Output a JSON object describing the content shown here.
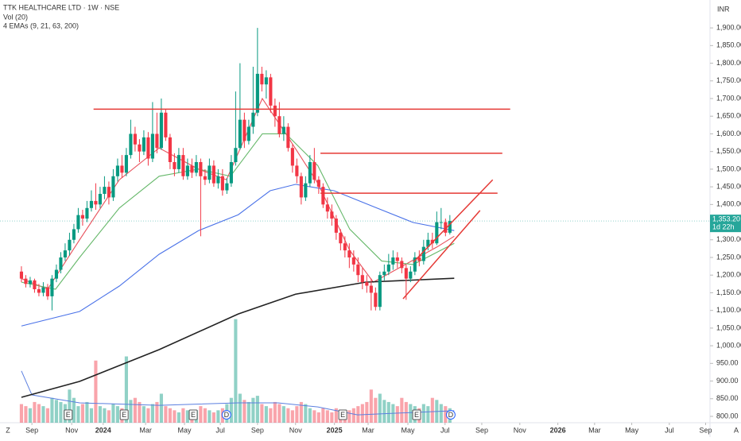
{
  "chart_data": {
    "type": "candlestick",
    "title": "TTK HEALTHCARE LTD · 1W · NSE",
    "volume_label": "Vol (20)",
    "ema_label": "4 EMAs (9, 21, 63, 200)",
    "currency": "INR",
    "corner_left": "Z",
    "corner_right": "A",
    "xlim": [
      -4.9,
      157.5
    ],
    "ylim": [
      782,
      1979
    ],
    "volume_ylim": [
      0,
      1020
    ],
    "up_color": "#089981",
    "down_color": "#f23645",
    "yticks": [
      {
        "value": 1900,
        "label": "1,900.00"
      },
      {
        "value": 1850,
        "label": "1,850.00"
      },
      {
        "value": 1800,
        "label": "1,800.00"
      },
      {
        "value": 1750,
        "label": "1,750.00"
      },
      {
        "value": 1700,
        "label": "1,700.00"
      },
      {
        "value": 1650,
        "label": "1,650.00"
      },
      {
        "value": 1600,
        "label": "1,600.00"
      },
      {
        "value": 1550,
        "label": "1,550.00"
      },
      {
        "value": 1500,
        "label": "1,500.00"
      },
      {
        "value": 1450,
        "label": "1,450.00"
      },
      {
        "value": 1400,
        "label": "1,400.00"
      },
      {
        "value": 1300,
        "label": "1,300.00"
      },
      {
        "value": 1250,
        "label": "1,250.00"
      },
      {
        "value": 1200,
        "label": "1,200.00"
      },
      {
        "value": 1150,
        "label": "1,150.00"
      },
      {
        "value": 1100,
        "label": "1,100.00"
      },
      {
        "value": 1050,
        "label": "1,050.00"
      },
      {
        "value": 1000,
        "label": "1,000.00"
      },
      {
        "value": 950,
        "label": "950.00"
      },
      {
        "value": 900,
        "label": "900.00"
      },
      {
        "value": 850,
        "label": "850.00"
      },
      {
        "value": 800,
        "label": "800.00"
      }
    ],
    "xticks": [
      {
        "value": 2.4,
        "label": "Sep"
      },
      {
        "value": 11.5,
        "label": "Nov"
      },
      {
        "value": 18.7,
        "label": "2024",
        "bold": true
      },
      {
        "value": 28.4,
        "label": "Mar"
      },
      {
        "value": 37.3,
        "label": "May"
      },
      {
        "value": 45.5,
        "label": "Jul"
      },
      {
        "value": 54,
        "label": "Sep"
      },
      {
        "value": 62.7,
        "label": "Nov"
      },
      {
        "value": 71.6,
        "label": "2025",
        "bold": true
      },
      {
        "value": 79.3,
        "label": "Mar"
      },
      {
        "value": 88.4,
        "label": "May"
      },
      {
        "value": 96.9,
        "label": "Jul"
      },
      {
        "value": 105.3,
        "label": "Sep"
      },
      {
        "value": 114,
        "label": "Nov"
      },
      {
        "value": 122.7,
        "label": "2026",
        "bold": true
      },
      {
        "value": 131.1,
        "label": "Mar"
      },
      {
        "value": 139.6,
        "label": "May"
      },
      {
        "value": 148.2,
        "label": "Jul"
      },
      {
        "value": 156.5,
        "label": "Sep"
      }
    ],
    "current_price": {
      "value": 1353.2,
      "label": "1,353.20",
      "countdown": "1d 22h",
      "color": "#26a69a"
    },
    "candles": [
      [
        1210,
        1225,
        1180,
        1190
      ],
      [
        1190,
        1200,
        1165,
        1175
      ],
      [
        1175,
        1195,
        1165,
        1185
      ],
      [
        1185,
        1190,
        1150,
        1160
      ],
      [
        1160,
        1175,
        1140,
        1150
      ],
      [
        1150,
        1180,
        1140,
        1165
      ],
      [
        1165,
        1175,
        1130,
        1140
      ],
      [
        1140,
        1200,
        1100,
        1190
      ],
      [
        1190,
        1230,
        1180,
        1215
      ],
      [
        1215,
        1265,
        1205,
        1250
      ],
      [
        1250,
        1290,
        1240,
        1270
      ],
      [
        1270,
        1320,
        1255,
        1300
      ],
      [
        1300,
        1345,
        1290,
        1330
      ],
      [
        1330,
        1390,
        1320,
        1370
      ],
      [
        1370,
        1385,
        1340,
        1360
      ],
      [
        1360,
        1410,
        1350,
        1390
      ],
      [
        1390,
        1440,
        1380,
        1410
      ],
      [
        1410,
        1460,
        1385,
        1400
      ],
      [
        1400,
        1450,
        1390,
        1430
      ],
      [
        1430,
        1480,
        1415,
        1450
      ],
      [
        1450,
        1465,
        1400,
        1420
      ],
      [
        1420,
        1500,
        1410,
        1480
      ],
      [
        1480,
        1530,
        1465,
        1510
      ],
      [
        1510,
        1540,
        1475,
        1490
      ],
      [
        1490,
        1560,
        1480,
        1540
      ],
      [
        1540,
        1640,
        1530,
        1600
      ],
      [
        1600,
        1620,
        1550,
        1570
      ],
      [
        1570,
        1585,
        1520,
        1550
      ],
      [
        1550,
        1610,
        1540,
        1590
      ],
      [
        1590,
        1605,
        1510,
        1530
      ],
      [
        1530,
        1690,
        1520,
        1600
      ],
      [
        1600,
        1660,
        1545,
        1560
      ],
      [
        1560,
        1700,
        1555,
        1660
      ],
      [
        1660,
        1670,
        1580,
        1590
      ],
      [
        1590,
        1600,
        1500,
        1520
      ],
      [
        1520,
        1545,
        1480,
        1500
      ],
      [
        1500,
        1560,
        1490,
        1540
      ],
      [
        1540,
        1560,
        1470,
        1480
      ],
      [
        1480,
        1530,
        1470,
        1510
      ],
      [
        1510,
        1530,
        1475,
        1490
      ],
      [
        1490,
        1540,
        1480,
        1520
      ],
      [
        1520,
        1530,
        1310,
        1480
      ],
      [
        1480,
        1500,
        1455,
        1470
      ],
      [
        1470,
        1530,
        1460,
        1510
      ],
      [
        1510,
        1525,
        1450,
        1460
      ],
      [
        1460,
        1500,
        1445,
        1480
      ],
      [
        1480,
        1500,
        1425,
        1440
      ],
      [
        1440,
        1475,
        1430,
        1460
      ],
      [
        1460,
        1540,
        1450,
        1520
      ],
      [
        1520,
        1720,
        1510,
        1560
      ],
      [
        1560,
        1800,
        1555,
        1640
      ],
      [
        1640,
        1660,
        1560,
        1580
      ],
      [
        1580,
        1640,
        1570,
        1620
      ],
      [
        1620,
        1790,
        1600,
        1660
      ],
      [
        1660,
        1900,
        1650,
        1770
      ],
      [
        1770,
        1790,
        1720,
        1740
      ],
      [
        1740,
        1780,
        1700,
        1760
      ],
      [
        1760,
        1770,
        1660,
        1680
      ],
      [
        1680,
        1700,
        1620,
        1650
      ],
      [
        1650,
        1690,
        1590,
        1600
      ],
      [
        1600,
        1650,
        1580,
        1620
      ],
      [
        1620,
        1630,
        1550,
        1560
      ],
      [
        1560,
        1570,
        1490,
        1510
      ],
      [
        1510,
        1530,
        1460,
        1480
      ],
      [
        1480,
        1490,
        1400,
        1420
      ],
      [
        1420,
        1480,
        1410,
        1460
      ],
      [
        1460,
        1540,
        1450,
        1520
      ],
      [
        1520,
        1560,
        1460,
        1470
      ],
      [
        1470,
        1480,
        1430,
        1450
      ],
      [
        1450,
        1460,
        1390,
        1400
      ],
      [
        1400,
        1420,
        1360,
        1380
      ],
      [
        1380,
        1400,
        1340,
        1360
      ],
      [
        1360,
        1370,
        1300,
        1320
      ],
      [
        1320,
        1330,
        1270,
        1290
      ],
      [
        1290,
        1310,
        1250,
        1270
      ],
      [
        1270,
        1290,
        1220,
        1250
      ],
      [
        1250,
        1270,
        1210,
        1230
      ],
      [
        1230,
        1250,
        1180,
        1200
      ],
      [
        1200,
        1220,
        1160,
        1180
      ],
      [
        1180,
        1200,
        1150,
        1170
      ],
      [
        1170,
        1190,
        1100,
        1150
      ],
      [
        1150,
        1165,
        1100,
        1110
      ],
      [
        1110,
        1210,
        1100,
        1200
      ],
      [
        1200,
        1230,
        1185,
        1210
      ],
      [
        1210,
        1260,
        1200,
        1230
      ],
      [
        1230,
        1270,
        1215,
        1250
      ],
      [
        1250,
        1265,
        1220,
        1240
      ],
      [
        1240,
        1250,
        1205,
        1220
      ],
      [
        1220,
        1230,
        1130,
        1190
      ],
      [
        1190,
        1225,
        1180,
        1210
      ],
      [
        1210,
        1265,
        1200,
        1250
      ],
      [
        1250,
        1270,
        1225,
        1240
      ],
      [
        1240,
        1300,
        1230,
        1280
      ],
      [
        1280,
        1320,
        1270,
        1300
      ],
      [
        1300,
        1320,
        1275,
        1290
      ],
      [
        1290,
        1380,
        1285,
        1350
      ],
      [
        1350,
        1390,
        1330,
        1350
      ],
      [
        1350,
        1360,
        1310,
        1320
      ],
      [
        1320,
        1370,
        1315,
        1353.2
      ]
    ],
    "volume": [
      45,
      40,
      35,
      50,
      45,
      40,
      35,
      60,
      55,
      50,
      45,
      80,
      60,
      40,
      45,
      50,
      35,
      150,
      40,
      35,
      30,
      45,
      40,
      35,
      160,
      55,
      60,
      50,
      40,
      35,
      45,
      50,
      70,
      40,
      35,
      30,
      25,
      35,
      30,
      25,
      30,
      40,
      35,
      30,
      25,
      30,
      35,
      45,
      60,
      250,
      70,
      55,
      50,
      60,
      65,
      45,
      40,
      35,
      50,
      45,
      40,
      35,
      30,
      40,
      50,
      45,
      35,
      30,
      25,
      35,
      30,
      25,
      35,
      30,
      25,
      30,
      35,
      40,
      45,
      50,
      80,
      60,
      70,
      55,
      50,
      45,
      40,
      60,
      50,
      45,
      40,
      35,
      45,
      40,
      60,
      55,
      45,
      40,
      35
    ],
    "volume_ma": {
      "color": "#5b7fe0",
      "x": [
        0,
        2.4,
        13.3,
        31.5,
        49.6,
        58.7,
        67.8,
        76.9,
        99
      ],
      "values": [
        125,
        67,
        48,
        42,
        48,
        48,
        38,
        19,
        29
      ]
    },
    "series": [
      {
        "color": "#e8505b",
        "x": [
          0,
          6,
          13.3,
          22.4,
          31.5,
          40.5,
          46.9,
          55.1,
          60.5,
          67.8,
          75.1,
          80.5,
          87.8,
          95.1,
          99
        ],
        "values": [
          1190,
          1160,
          1300,
          1470,
          1560,
          1500,
          1470,
          1700,
          1600,
          1460,
          1270,
          1180,
          1230,
          1280,
          1310
        ]
      },
      {
        "color": "#66b86a",
        "x": [
          0,
          7.8,
          13.3,
          22.4,
          31.5,
          40.5,
          47.8,
          55.1,
          60.5,
          67.8,
          75.1,
          82.4,
          89.6,
          99
        ],
        "values": [
          1180,
          1160,
          1250,
          1390,
          1480,
          1500,
          1480,
          1600,
          1600,
          1510,
          1330,
          1240,
          1230,
          1290
        ]
      },
      {
        "color": "#4a72e8",
        "x": [
          0,
          13.3,
          22.4,
          31.5,
          40.5,
          49.6,
          56.9,
          62.7,
          71.5,
          80.5,
          89.6,
          99
        ],
        "values": [
          1056,
          1097,
          1169,
          1259,
          1326,
          1371,
          1439,
          1457,
          1439,
          1394,
          1349,
          1326
        ]
      },
      {
        "color": "#222222",
        "x": [
          0,
          13.3,
          31.5,
          49.6,
          62.7,
          78.7,
          99
        ],
        "values": [
          854,
          899,
          989,
          1090,
          1146,
          1180,
          1191
        ]
      }
    ],
    "levels": [
      {
        "value": 1670,
        "x": [
          16.5,
          111.8
        ]
      },
      {
        "value": 1545,
        "x": [
          68.4,
          110
        ]
      },
      {
        "value": 1432,
        "x": [
          68.4,
          108.9
        ]
      }
    ],
    "trendlines": [
      {
        "x": [
          89.6,
          107.8
        ],
        "values": [
          1236,
          1470
        ]
      },
      {
        "x": [
          87.3,
          104.9
        ],
        "values": [
          1133,
          1383
        ]
      }
    ],
    "line_color": "#e53935",
    "events": [
      {
        "label": "E",
        "x": 10.7
      },
      {
        "label": "E",
        "x": 23.5
      },
      {
        "label": "E",
        "x": 39.3
      },
      {
        "label": "D",
        "x": 46.9
      },
      {
        "label": "E",
        "x": 73.5
      },
      {
        "label": "E",
        "x": 90.4
      },
      {
        "label": "D",
        "x": 98.2
      }
    ]
  }
}
